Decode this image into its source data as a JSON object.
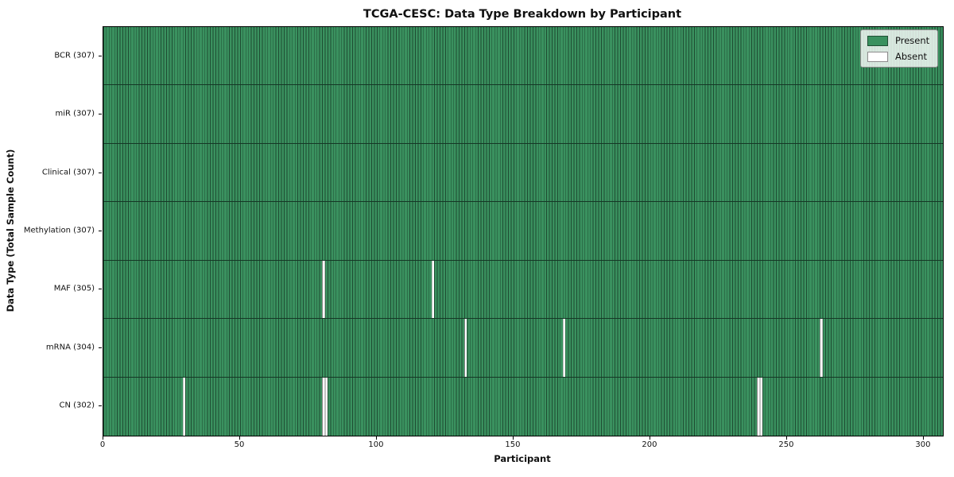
{
  "title": "TCGA-CESC: Data Type Breakdown by Participant",
  "legend": {
    "present_label": "Present",
    "absent_label": "Absent"
  },
  "colors": {
    "present": "#3a915f",
    "absent": "#ffffff"
  },
  "chart_data": {
    "type": "heatmap",
    "title": "TCGA-CESC: Data Type Breakdown by Participant",
    "xlabel": "Participant",
    "ylabel": "Data Type (Total Sample Count)",
    "x_range": [
      0,
      307
    ],
    "x_ticks": [
      0,
      50,
      100,
      150,
      200,
      250,
      300
    ],
    "total_participants": 307,
    "legend_entries": [
      "Present",
      "Absent"
    ],
    "legend_position": "upper right",
    "grid": false,
    "rows": [
      {
        "label": "BCR (307)",
        "data_type": "BCR",
        "present_count": 307,
        "absent_participants": []
      },
      {
        "label": "miR (307)",
        "data_type": "miR",
        "present_count": 307,
        "absent_participants": []
      },
      {
        "label": "Clinical (307)",
        "data_type": "Clinical",
        "present_count": 307,
        "absent_participants": []
      },
      {
        "label": "Methylation (307)",
        "data_type": "Methylation",
        "present_count": 307,
        "absent_participants": []
      },
      {
        "label": "MAF (305)",
        "data_type": "MAF",
        "present_count": 305,
        "absent_participants": [
          80,
          120
        ]
      },
      {
        "label": "mRNA (304)",
        "data_type": "mRNA",
        "present_count": 304,
        "absent_participants": [
          132,
          168,
          262
        ]
      },
      {
        "label": "CN (302)",
        "data_type": "CN",
        "present_count": 302,
        "absent_participants": [
          29,
          80,
          81,
          239,
          240
        ]
      }
    ]
  }
}
